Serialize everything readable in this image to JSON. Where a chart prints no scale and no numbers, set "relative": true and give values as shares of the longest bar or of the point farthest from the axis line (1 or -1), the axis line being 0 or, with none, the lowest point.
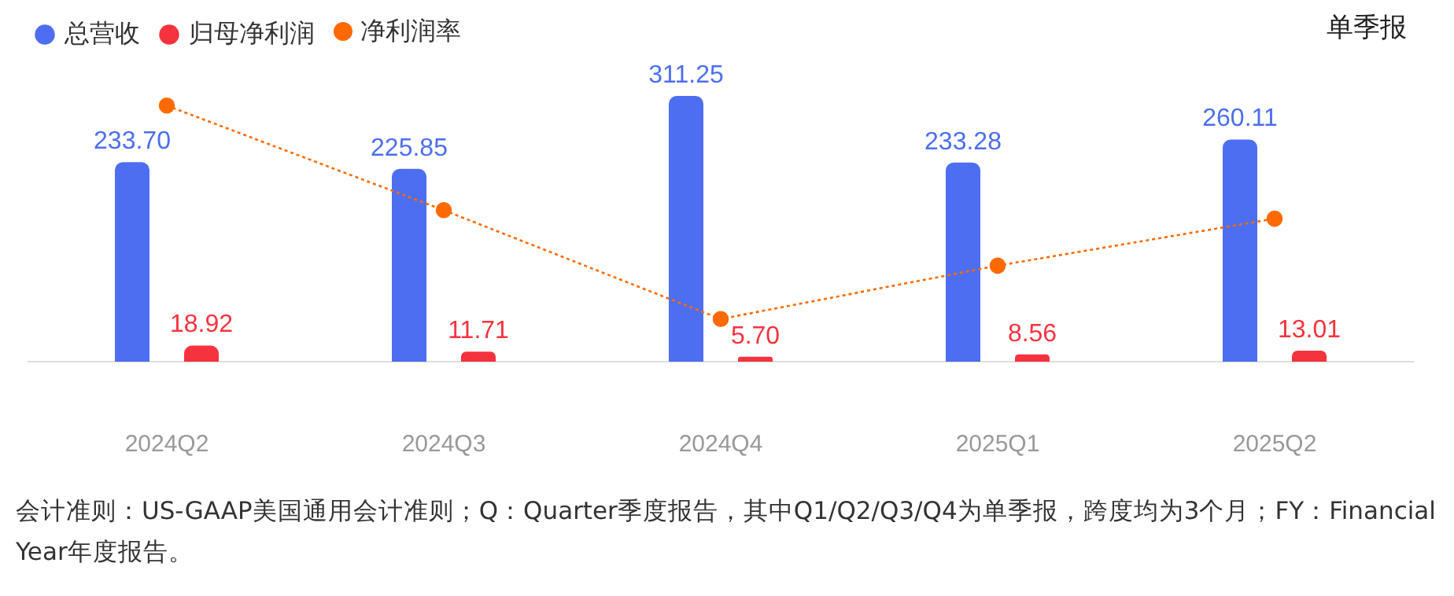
{
  "chart_data": [
    {
      "type": "bar",
      "categories": [
        "2024Q2",
        "2024Q3",
        "2024Q4",
        "2025Q1",
        "2025Q2"
      ],
      "series": [
        {
          "name": "总营收",
          "color": "#4d6ef0",
          "values": [
            233.7,
            225.85,
            311.25,
            233.28,
            260.11
          ],
          "value_labels": [
            "233.70",
            "225.85",
            "311.25",
            "233.28",
            "260.11"
          ]
        },
        {
          "name": "归母净利润",
          "color": "#f5333f",
          "values": [
            18.92,
            11.71,
            5.7,
            8.56,
            13.01
          ],
          "value_labels": [
            "18.92",
            "11.71",
            "5.70",
            "8.56",
            "13.01"
          ]
        }
      ],
      "grid": false,
      "legend": "top left",
      "tick_labels": "x",
      "annotations": [
        "单季报",
        "会计准则：US-GAAP美国通用会计准则；Q：Quarter季度报告，其中Q1/Q2/Q3/Q4为单季报，跨度均为3个月；FY：Financial Year年度报告。"
      ]
    },
    {
      "type": "line",
      "categories": [
        null,
        null,
        null,
        null,
        null
      ],
      "relative": true,
      "series": [
        {
          "name": "净利润率",
          "color": "#ff6a00",
          "values": [
            1,
            0.51,
            0,
            0.25,
            0.47
          ]
        }
      ],
      "marker": "circle",
      "line_style": "dotted",
      "grid": false,
      "legend": "top left",
      "tick_labels": false
    }
  ]
}
